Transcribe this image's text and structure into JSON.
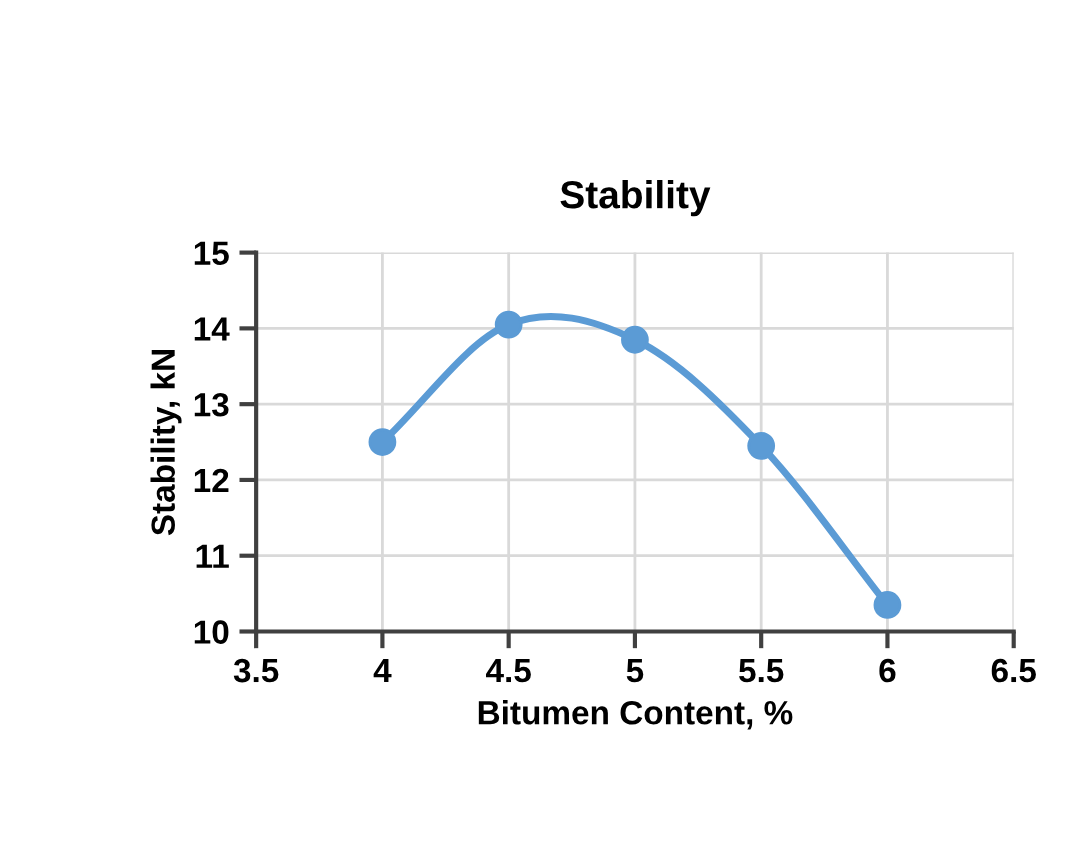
{
  "chart_data": {
    "type": "line",
    "title": "Stability",
    "xlabel": "Bitumen Content, %",
    "ylabel": "Stability, kN",
    "x": [
      4,
      4.5,
      5,
      5.5,
      6
    ],
    "series": [
      {
        "color": "#5b9bd5",
        "values": [
          12.5,
          14.05,
          13.85,
          12.45,
          10.35
        ]
      }
    ],
    "xlim": [
      3.5,
      6.5
    ],
    "xticks": [
      3.5,
      4,
      4.5,
      5,
      5.5,
      6,
      6.5
    ],
    "ylim": [
      10,
      15
    ],
    "yticks": [
      10,
      11,
      12,
      13,
      14,
      15
    ],
    "grid": true,
    "marker": "circle",
    "line_style": "solid",
    "legend": false
  }
}
